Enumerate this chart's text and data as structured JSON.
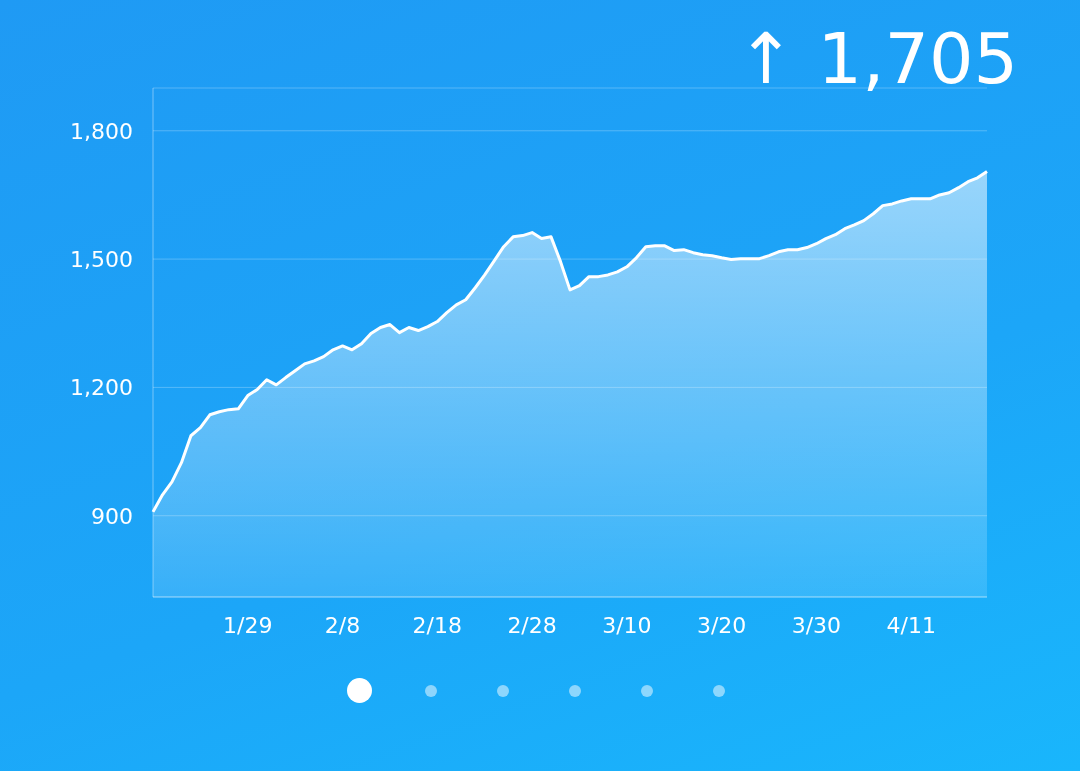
{
  "chart_data": {
    "type": "area",
    "title": "↑ 1,705",
    "categories": [
      null,
      null,
      null,
      null,
      null,
      null,
      null,
      null,
      null,
      null,
      "1/29",
      null,
      null,
      null,
      null,
      null,
      null,
      null,
      null,
      null,
      "2/8",
      null,
      null,
      null,
      null,
      null,
      null,
      null,
      null,
      null,
      "2/18",
      null,
      null,
      null,
      null,
      null,
      null,
      null,
      null,
      null,
      "2/28",
      null,
      null,
      null,
      null,
      null,
      null,
      null,
      null,
      null,
      "3/10",
      null,
      null,
      null,
      null,
      null,
      null,
      null,
      null,
      null,
      "3/20",
      null,
      null,
      null,
      null,
      null,
      null,
      null,
      null,
      null,
      "3/30",
      null,
      null,
      null,
      null,
      null,
      null,
      null,
      null,
      null,
      "4/11",
      null,
      null,
      null,
      null,
      null,
      null,
      null,
      null
    ],
    "series": [
      {
        "color": "#ffffff",
        "values": [
          909,
          949,
          979,
          1024,
          1087,
          1106,
          1136,
          1143,
          1148,
          1150,
          1181,
          1195,
          1218,
          1206,
          1223,
          1239,
          1255,
          1262,
          1272,
          1288,
          1297,
          1288,
          1302,
          1326,
          1340,
          1347,
          1328,
          1340,
          1333,
          1342,
          1354,
          1375,
          1393,
          1405,
          1433,
          1463,
          1496,
          1529,
          1552,
          1555,
          1562,
          1548,
          1552,
          1494,
          1428,
          1438,
          1459,
          1459,
          1463,
          1470,
          1482,
          1503,
          1529,
          1531,
          1531,
          1520,
          1522,
          1515,
          1510,
          1508,
          1503,
          1499,
          1501,
          1501,
          1501,
          1508,
          1517,
          1522,
          1522,
          1527,
          1536,
          1548,
          1557,
          1571,
          1580,
          1590,
          1606,
          1625,
          1629,
          1636,
          1641,
          1641,
          1641,
          1650,
          1655,
          1667,
          1681,
          1690,
          1705
        ]
      }
    ],
    "ylim": [
      710,
      1900
    ],
    "yticks": [
      {
        "value": 900,
        "label": "900"
      },
      {
        "value": 1200,
        "label": "1,200"
      },
      {
        "value": 1500,
        "label": "1,500"
      },
      {
        "value": 1800,
        "label": "1,800"
      }
    ],
    "grid": "y",
    "legend": false,
    "marker": "none",
    "line_style": "solid"
  }
}
